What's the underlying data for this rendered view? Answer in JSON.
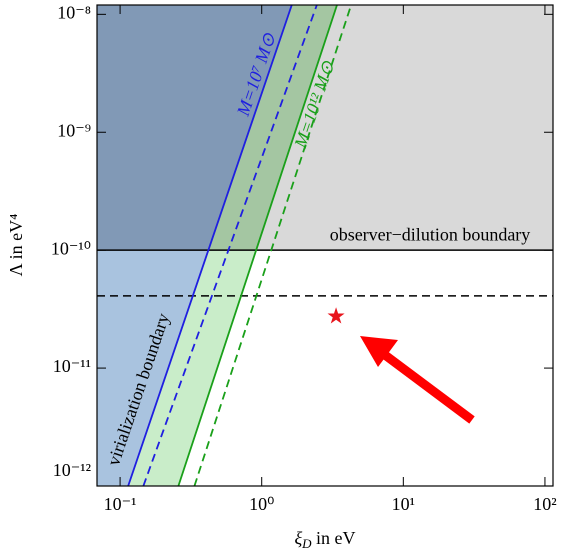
{
  "chart_data": {
    "type": "line",
    "log_x": true,
    "log_y": true,
    "xlabel": {
      "symbol": "ξ",
      "subscript": "D",
      "rest": " in eV"
    },
    "ylabel": "Λ in eV⁴",
    "xlim": [
      0.0687,
      114
    ],
    "ylim": [
      1e-12,
      1.2e-08
    ],
    "xticks": [
      {
        "value": 0.1,
        "label": "10⁻¹"
      },
      {
        "value": 1,
        "label": "10⁰"
      },
      {
        "value": 10,
        "label": "10¹"
      },
      {
        "value": 100,
        "label": "10²"
      }
    ],
    "yticks": [
      {
        "value": 1e-12,
        "label": "10⁻¹²"
      },
      {
        "value": 1e-11,
        "label": "10⁻¹¹"
      },
      {
        "value": 1e-10,
        "label": "10⁻¹⁰"
      },
      {
        "value": 1e-09,
        "label": "10⁻⁹"
      },
      {
        "value": 1e-08,
        "label": "10⁻⁸"
      }
    ],
    "series": [
      {
        "name": "M=10⁷ M⊙",
        "color": "#1f1fe0",
        "dash": false,
        "x": [
          0.114,
          1.63
        ],
        "values": [
          1e-12,
          1.2e-08
        ]
      },
      {
        "color": "#1f1fe0",
        "dash": true,
        "x": [
          0.146,
          2.45
        ],
        "values": [
          1e-12,
          1.2e-08
        ]
      },
      {
        "name": "M=10¹² M⊙",
        "color": "#1aa01a",
        "dash": false,
        "x": [
          0.258,
          3.4
        ],
        "values": [
          1e-12,
          1.2e-08
        ]
      },
      {
        "color": "#1aa01a",
        "dash": true,
        "x": [
          0.335,
          4.28
        ],
        "values": [
          1e-12,
          1.2e-08
        ]
      }
    ],
    "hlines": [
      {
        "name": "observer−dilution boundary",
        "value": 1e-10,
        "dash": false
      },
      {
        "value": 4.1e-11,
        "dash": true
      }
    ],
    "annotations": [
      "virialization boundary"
    ],
    "point": {
      "x": 3.35,
      "y": 2.75e-11,
      "color": "#e8141c"
    },
    "region_colors": {
      "upper_left": "#8199b6",
      "lower_left": "#a9c3df",
      "band_upper": "#a4c6a2",
      "band_lower": "#c9edc9",
      "upper_right": "#d9d9d9"
    }
  }
}
